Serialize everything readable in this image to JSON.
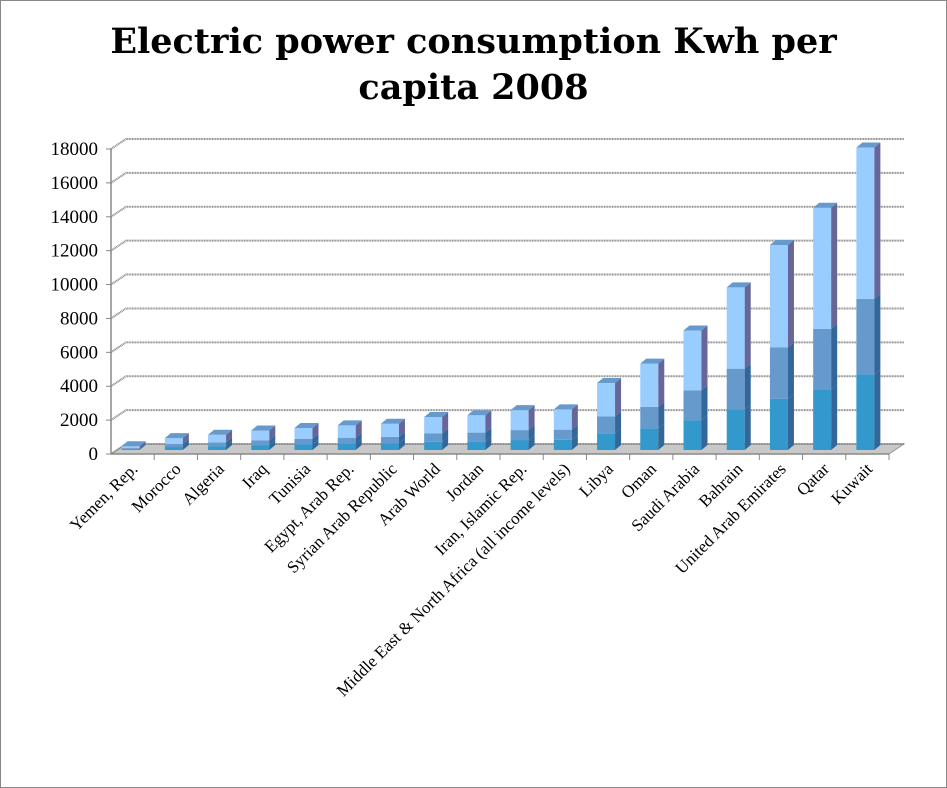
{
  "chart_data": {
    "type": "bar",
    "stacked": true,
    "three_d": true,
    "title_lines": [
      "Electric power consumption Kwh per",
      "capita 2008"
    ],
    "xlabel": "",
    "ylabel": "",
    "ylim": [
      0,
      18000
    ],
    "yticks": [
      0,
      2000,
      4000,
      6000,
      8000,
      10000,
      12000,
      14000,
      16000,
      18000
    ],
    "grid": true,
    "legend": "none",
    "categories": [
      "Yemen, Rep.",
      "Morocco",
      "Algeria",
      "Iraq",
      "Tunisia",
      "Egypt, Arab Rep.",
      "Syrian Arab Republic",
      "Arab World",
      "Jordan",
      "Iran, Islamic Rep.",
      "Middle East & North Africa (all income levels)",
      "Libya",
      "Oman",
      "Saudi Arabia",
      "Bahrain",
      "United Arab Emirates",
      "Qatar",
      "Kuwait"
    ],
    "series": [
      {
        "values": [
          55,
          175,
          225,
          288,
          325,
          363,
          388,
          488,
          513,
          588,
          600,
          988,
          1275,
          1763,
          2400,
          3025,
          3575,
          4463
        ],
        "color": "#3399cc"
      },
      {
        "values": [
          55,
          175,
          225,
          288,
          325,
          363,
          388,
          488,
          513,
          588,
          600,
          988,
          1275,
          1763,
          2400,
          3025,
          3575,
          4463
        ],
        "color": "#6699cc"
      },
      {
        "values": [
          110,
          350,
          450,
          575,
          650,
          725,
          775,
          975,
          1025,
          1175,
          1200,
          1975,
          2550,
          3525,
          4800,
          6050,
          7150,
          8925
        ],
        "color": "#99ccff"
      }
    ]
  }
}
